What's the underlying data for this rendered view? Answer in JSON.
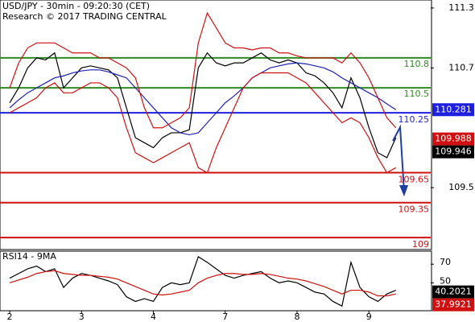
{
  "chart_data": {
    "type": "line",
    "title": "USD/JPY - 30min - 09:20:30 (CET)",
    "subtitle": "Research © 2017 TRADING CENTRAL",
    "xlim": [
      -0.135,
      5.86
    ],
    "xticks": [
      {
        "value": 0,
        "label": "2"
      },
      {
        "value": 1,
        "label": "3"
      },
      {
        "value": 2,
        "label": "4"
      },
      {
        "value": 3,
        "label": "7"
      },
      {
        "value": 4,
        "label": "8"
      },
      {
        "value": 5,
        "label": "9"
      }
    ],
    "ylim": [
      108.88,
      111.38
    ],
    "yticks": [
      111.3,
      110.7,
      109.5
    ],
    "x": [
      0,
      0.125,
      0.25,
      0.375,
      0.5,
      0.625,
      0.75,
      0.875,
      1,
      1.125,
      1.25,
      1.375,
      1.5,
      1.625,
      1.75,
      1.875,
      2,
      2.125,
      2.25,
      2.375,
      2.5,
      2.625,
      2.75,
      2.875,
      3,
      3.125,
      3.25,
      3.375,
      3.5,
      3.625,
      3.75,
      3.875,
      4,
      4.125,
      4.25,
      4.375,
      4.5,
      4.625,
      4.75,
      4.875,
      5,
      5.125,
      5.25,
      5.375
    ],
    "series": [
      {
        "name": "Price",
        "color": "#000000",
        "values": [
          110.35,
          110.5,
          110.7,
          110.8,
          110.78,
          110.85,
          110.5,
          110.6,
          110.7,
          110.72,
          110.7,
          110.68,
          110.6,
          110.3,
          110.0,
          109.95,
          109.9,
          110.0,
          110.05,
          110.05,
          110.08,
          110.7,
          110.85,
          110.75,
          110.72,
          110.75,
          110.75,
          110.8,
          110.85,
          110.78,
          110.75,
          110.78,
          110.75,
          110.65,
          110.62,
          110.55,
          110.45,
          110.3,
          110.6,
          110.4,
          110.1,
          109.85,
          109.8,
          110.0
        ]
      },
      {
        "name": "MA",
        "color": "#1f1fb4",
        "values": [
          110.3,
          110.38,
          110.45,
          110.5,
          110.55,
          110.6,
          110.62,
          110.65,
          110.67,
          110.68,
          110.68,
          110.66,
          110.63,
          110.6,
          110.5,
          110.4,
          110.3,
          110.2,
          110.1,
          110.05,
          110.03,
          110.05,
          110.15,
          110.25,
          110.35,
          110.42,
          110.5,
          110.6,
          110.65,
          110.7,
          110.72,
          110.74,
          110.75,
          110.74,
          110.72,
          110.7,
          110.66,
          110.6,
          110.55,
          110.5,
          110.45,
          110.4,
          110.34,
          110.28
        ]
      },
      {
        "name": "Upper band",
        "color": "#d01010",
        "values": [
          110.5,
          110.75,
          110.9,
          110.95,
          110.95,
          110.95,
          110.9,
          110.85,
          110.85,
          110.85,
          110.8,
          110.8,
          110.75,
          110.7,
          110.6,
          110.3,
          110.1,
          110.1,
          110.15,
          110.2,
          110.3,
          110.95,
          111.25,
          111.1,
          110.95,
          110.9,
          110.9,
          110.88,
          110.9,
          110.9,
          110.85,
          110.85,
          110.82,
          110.8,
          110.8,
          110.8,
          110.8,
          110.75,
          110.85,
          110.75,
          110.6,
          110.4,
          110.2,
          110.1
        ]
      },
      {
        "name": "Lower band",
        "color": "#d01010",
        "values": [
          110.25,
          110.3,
          110.35,
          110.4,
          110.5,
          110.55,
          110.45,
          110.45,
          110.5,
          110.55,
          110.55,
          110.5,
          110.4,
          110.1,
          109.85,
          109.8,
          109.75,
          109.8,
          109.85,
          109.9,
          109.95,
          109.7,
          109.65,
          109.9,
          110.1,
          110.3,
          110.5,
          110.6,
          110.65,
          110.65,
          110.65,
          110.65,
          110.6,
          110.55,
          110.45,
          110.35,
          110.25,
          110.15,
          110.2,
          110.15,
          110.0,
          109.8,
          109.65,
          109.7
        ]
      }
    ],
    "levels": [
      {
        "value": 110.8,
        "color": "#2e8b20"
      },
      {
        "value": 110.5,
        "color": "#2e8b20"
      },
      {
        "value": 110.25,
        "color": "#1f1fe0"
      },
      {
        "value": 109.65,
        "color": "#d01010"
      },
      {
        "value": 109.35,
        "color": "#d01010"
      },
      {
        "value": 109,
        "color": "#d01010"
      }
    ],
    "price_boxes": [
      {
        "value": 110.281,
        "color": "#1f1fe0"
      },
      {
        "value": 109.988,
        "color": "#d01010"
      },
      {
        "value": 109.946,
        "color": "#000000"
      }
    ],
    "rsi": {
      "title": "RSI14 - 9MA",
      "ylim": [
        20,
        84
      ],
      "yticks": [
        70,
        50
      ],
      "series": [
        {
          "name": "RSI14",
          "color": "#000000",
          "values": [
            55,
            60,
            65,
            68,
            62,
            65,
            45,
            55,
            60,
            58,
            55,
            52,
            48,
            35,
            30,
            33,
            30,
            45,
            50,
            48,
            50,
            78,
            72,
            65,
            58,
            55,
            58,
            60,
            62,
            55,
            50,
            52,
            50,
            45,
            40,
            38,
            30,
            25,
            72,
            45,
            35,
            30,
            38,
            42
          ]
        },
        {
          "name": "9MA",
          "color": "#d01010",
          "values": [
            50,
            53,
            56,
            60,
            62,
            63,
            60,
            59,
            58,
            58,
            57,
            56,
            54,
            50,
            46,
            42,
            38,
            37,
            38,
            40,
            42,
            50,
            55,
            58,
            60,
            60,
            59,
            59,
            60,
            59,
            57,
            55,
            54,
            52,
            49,
            46,
            42,
            38,
            42,
            42,
            40,
            36,
            36,
            38
          ]
        }
      ],
      "boxes": [
        {
          "value": 40.2021,
          "color": "#000000"
        },
        {
          "value": 37.9921,
          "color": "#d01010"
        }
      ]
    }
  }
}
